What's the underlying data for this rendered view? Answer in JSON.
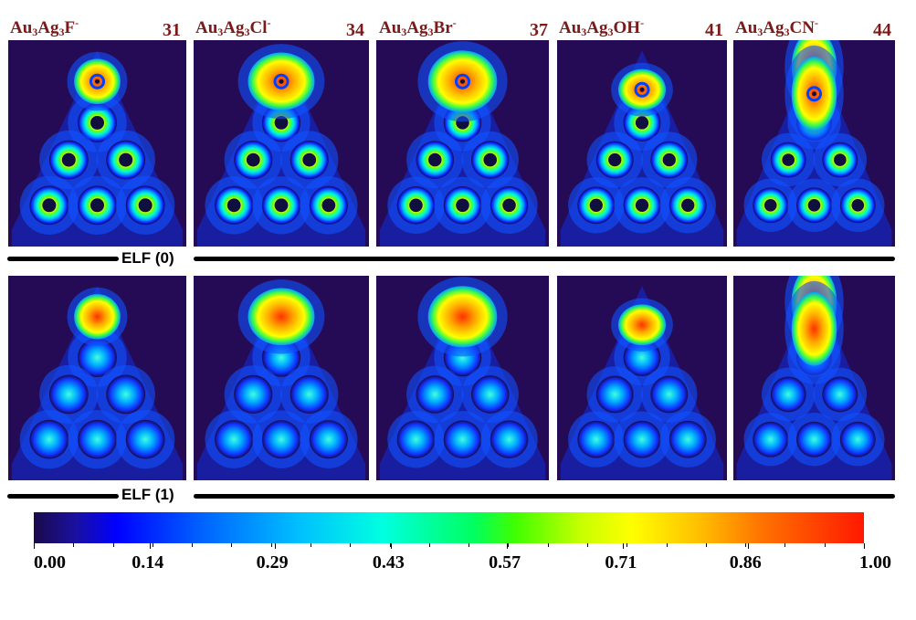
{
  "panels": [
    {
      "label_parts": [
        "Au",
        "3",
        "Ag",
        "3",
        "F",
        "-"
      ],
      "number": "31"
    },
    {
      "label_parts": [
        "Au",
        "3",
        "Ag",
        "3",
        "Cl",
        "-"
      ],
      "number": "34"
    },
    {
      "label_parts": [
        "Au",
        "3",
        "Ag",
        "3",
        "Br",
        "-"
      ],
      "number": "37"
    },
    {
      "label_parts": [
        "Au",
        "3",
        "Ag",
        "3",
        "OH",
        "-"
      ],
      "number": "41"
    },
    {
      "label_parts": [
        "Au",
        "3",
        "Ag",
        "3",
        "CN",
        "-"
      ],
      "number": "44"
    }
  ],
  "separators": {
    "row1": "ELF (0)",
    "row2": "ELF (1)"
  },
  "colorbar": {
    "ticks": [
      "0.00",
      "0.14",
      "0.29",
      "0.43",
      "0.57",
      "0.71",
      "0.86",
      "1.00"
    ],
    "min": 0.0,
    "max": 1.0,
    "colors": [
      "#1a0a4a",
      "#0000ff",
      "#00c0ff",
      "#00ffe0",
      "#00ff60",
      "#ffff00",
      "#ff7000",
      "#ff1800"
    ]
  }
}
